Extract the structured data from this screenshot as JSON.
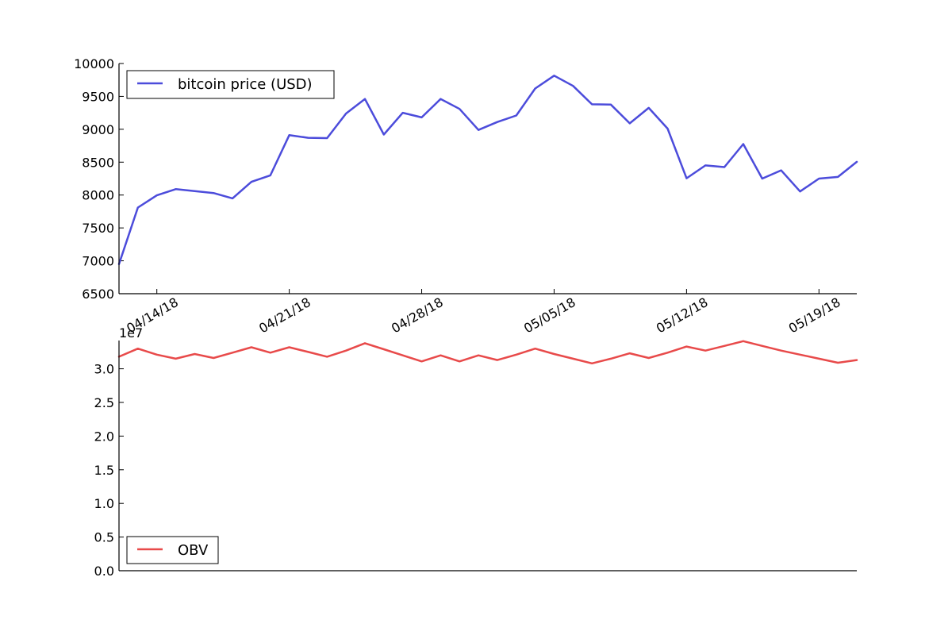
{
  "chart_data": [
    {
      "type": "line",
      "x_dates": [
        "04/12/18",
        "04/13/18",
        "04/14/18",
        "04/15/18",
        "04/16/18",
        "04/17/18",
        "04/18/18",
        "04/19/18",
        "04/20/18",
        "04/21/18",
        "04/22/18",
        "04/23/18",
        "04/24/18",
        "04/25/18",
        "04/26/18",
        "04/27/18",
        "04/28/18",
        "04/29/18",
        "04/30/18",
        "05/01/18",
        "05/02/18",
        "05/03/18",
        "05/04/18",
        "05/05/18",
        "05/06/18",
        "05/07/18",
        "05/08/18",
        "05/09/18",
        "05/10/18",
        "05/11/18",
        "05/12/18",
        "05/13/18",
        "05/14/18",
        "05/15/18",
        "05/16/18",
        "05/17/18",
        "05/18/18",
        "05/19/18",
        "05/20/18",
        "05/21/18"
      ],
      "series": [
        {
          "name": "bitcoin price (USD)",
          "color": "#4c4cdb",
          "values": [
            6950,
            7810,
            7995,
            8090,
            8060,
            8030,
            7950,
            8200,
            8300,
            8910,
            8870,
            8865,
            9240,
            9460,
            8920,
            9250,
            9180,
            9460,
            9310,
            8990,
            9110,
            9210,
            9620,
            9815,
            9660,
            9380,
            9375,
            9090,
            9325,
            9010,
            8255,
            8450,
            8425,
            8775,
            8250,
            8375,
            8055,
            8250,
            8275,
            8505
          ]
        }
      ],
      "x_ticks": [
        "04/14/18",
        "04/21/18",
        "04/28/18",
        "05/05/18",
        "05/12/18",
        "05/19/18"
      ],
      "y_ticks": [
        "6500",
        "7000",
        "7500",
        "8000",
        "8500",
        "9000",
        "9500",
        "10000"
      ],
      "ylim": [
        6500,
        10000
      ],
      "legend_position": "upper-left",
      "grid": false
    },
    {
      "type": "line",
      "x_dates": [
        "04/12/18",
        "04/13/18",
        "04/14/18",
        "04/15/18",
        "04/16/18",
        "04/17/18",
        "04/18/18",
        "04/19/18",
        "04/20/18",
        "04/21/18",
        "04/22/18",
        "04/23/18",
        "04/24/18",
        "04/25/18",
        "04/26/18",
        "04/27/18",
        "04/28/18",
        "04/29/18",
        "04/30/18",
        "05/01/18",
        "05/02/18",
        "05/03/18",
        "05/04/18",
        "05/05/18",
        "05/06/18",
        "05/07/18",
        "05/08/18",
        "05/09/18",
        "05/10/18",
        "05/11/18",
        "05/12/18",
        "05/13/18",
        "05/14/18",
        "05/15/18",
        "05/16/18",
        "05/17/18",
        "05/18/18",
        "05/19/18",
        "05/20/18",
        "05/21/18"
      ],
      "series": [
        {
          "name": "OBV",
          "color": "#e84a4a",
          "values": [
            3.18,
            3.3,
            3.21,
            3.15,
            3.22,
            3.16,
            3.24,
            3.32,
            3.24,
            3.32,
            3.25,
            3.18,
            3.27,
            3.38,
            3.29,
            3.2,
            3.11,
            3.2,
            3.11,
            3.2,
            3.13,
            3.21,
            3.3,
            3.22,
            3.15,
            3.08,
            3.15,
            3.23,
            3.16,
            3.24,
            3.33,
            3.27,
            3.34,
            3.41,
            3.34,
            3.27,
            3.21,
            3.15,
            3.09,
            3.13
          ]
        }
      ],
      "y_ticks": [
        "0.0",
        "0.5",
        "1.0",
        "1.5",
        "2.0",
        "2.5",
        "3.0"
      ],
      "y_offset_label": "1e7",
      "ylim": [
        0,
        3.42
      ],
      "legend_position": "lower-left",
      "grid": false
    }
  ]
}
